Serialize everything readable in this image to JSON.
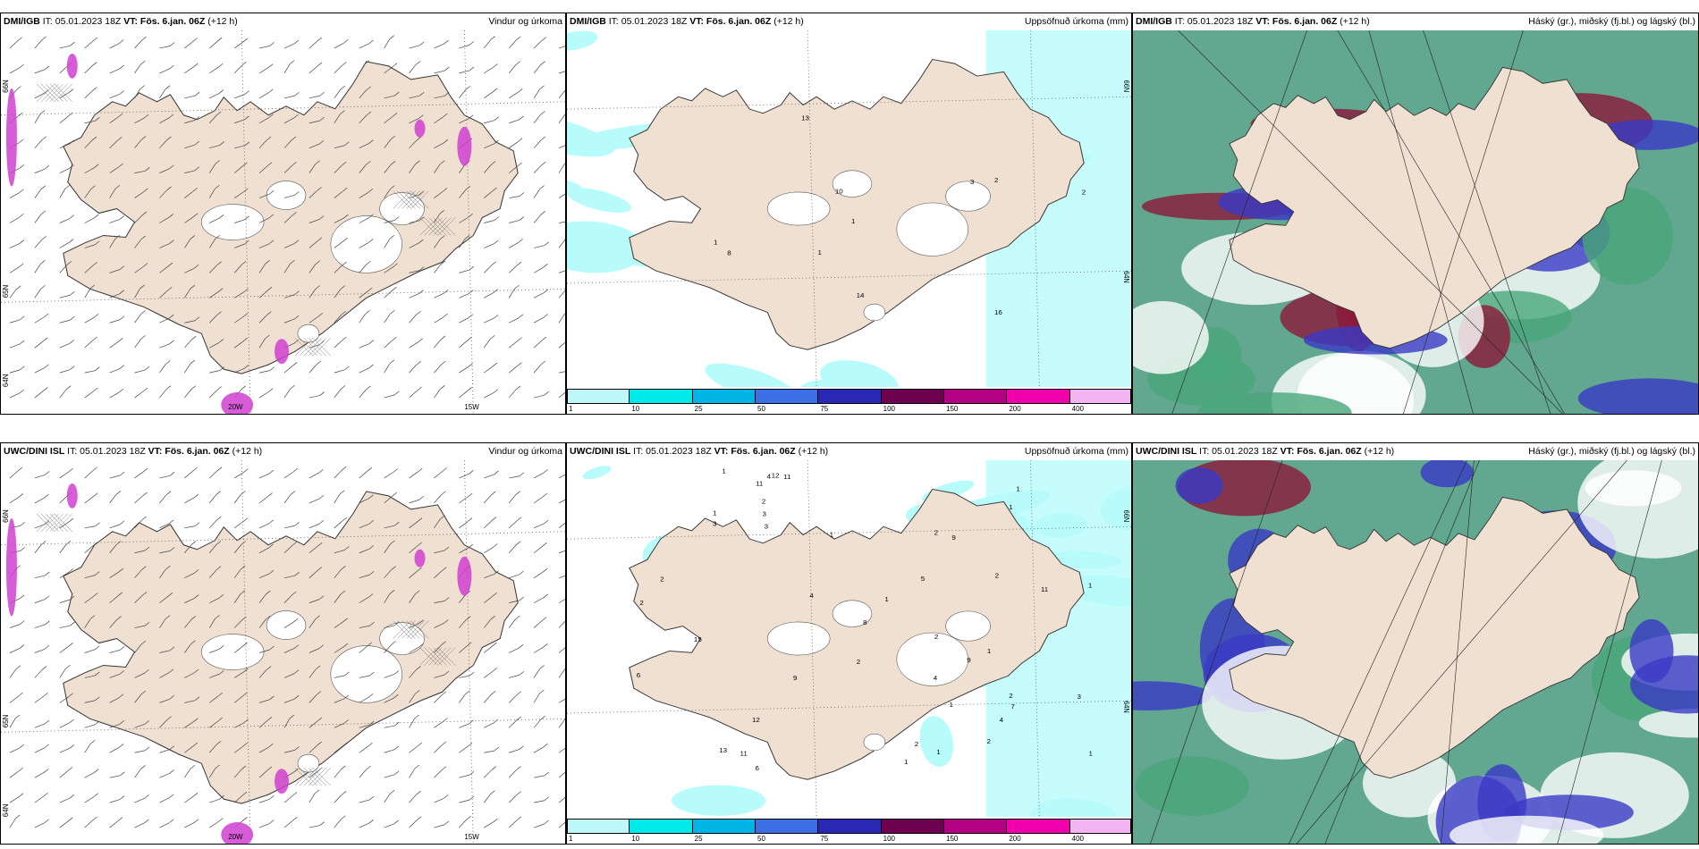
{
  "panels": [
    {
      "model": "DMI/IGB",
      "it": "IT: 05.01.2023 18Z",
      "vt_label": "VT:",
      "vt": "Fös. 6.jan. 06Z",
      "lead": "(+12 h)",
      "title": "Vindur og úrkoma",
      "kind": "wind",
      "lon_labels": [
        "20W",
        "15W"
      ],
      "lat_labels": [
        "66N",
        "65N",
        "64N"
      ]
    },
    {
      "model": "DMI/IGB",
      "it": "IT: 05.01.2023 18Z",
      "vt_label": "VT:",
      "vt": "Fös. 6.jan. 06Z",
      "lead": "(+12 h)",
      "title": "Uppsöfnuð úrkoma (mm)",
      "kind": "precip",
      "lat_labels": [
        "66N",
        "64N"
      ],
      "numbers": [
        "3",
        "16",
        "2",
        "1",
        "14",
        "13",
        "10",
        "1",
        "1",
        "2",
        "8"
      ]
    },
    {
      "model": "DMI/IGB",
      "it": "IT: 05.01.2023 18Z",
      "vt_label": "VT:",
      "vt": "Fös. 6.jan. 06Z",
      "lead": "(+12 h)",
      "title": "Háský (gr.), miðský (fj.bl.) og lágský (bl.)",
      "kind": "cloud"
    },
    {
      "model": "UWC/DINI ISL",
      "it": "IT: 05.01.2023 18Z",
      "vt_label": "VT:",
      "vt": "Fös. 6.jan. 06Z",
      "lead": "(+12 h)",
      "title": "Vindur og úrkoma",
      "kind": "wind",
      "lon_labels": [
        "20W",
        "15W"
      ],
      "lat_labels": [
        "66N",
        "65N",
        "64N"
      ]
    },
    {
      "model": "UWC/DINI ISL",
      "it": "IT: 05.01.2023 18Z",
      "vt_label": "VT:",
      "vt": "Fös. 6.jan. 06Z",
      "lead": "(+12 h)",
      "title": "Uppsöfnuð úrkoma (mm)",
      "kind": "precip",
      "lat_labels": [
        "66N",
        "64N"
      ],
      "numbers": [
        "1",
        "2",
        "2",
        "1",
        "3",
        "4",
        "7",
        "6",
        "5",
        "15",
        "9",
        "6",
        "2",
        "1",
        "1",
        "2",
        "1",
        "2",
        "4",
        "11",
        "13",
        "12",
        "11",
        "9",
        "9",
        "11",
        "12",
        "11",
        "4",
        "2",
        "8",
        "2",
        "2",
        "1",
        "1",
        "1",
        "1",
        "2",
        "3",
        "2",
        "1",
        "4",
        "3",
        "3",
        "1",
        "1"
      ]
    },
    {
      "model": "UWC/DINI ISL",
      "it": "IT: 05.01.2023 18Z",
      "vt_label": "VT:",
      "vt": "Fös. 6.jan. 06Z",
      "lead": "(+12 h)",
      "title": "Háský (gr.), miðský (fj.bl.) og lágský (bl.)",
      "kind": "cloud"
    }
  ],
  "colorbar": {
    "ticks": [
      "1",
      "10",
      "25",
      "50",
      "75",
      "100",
      "150",
      "200",
      "400"
    ],
    "colors": [
      "#bff8f8",
      "#00eaea",
      "#00b4e6",
      "#3c6ee6",
      "#2828b4",
      "#6e0050",
      "#b40082",
      "#f000aa",
      "#f4b4f4"
    ]
  },
  "colors": {
    "land": "#efe0d2",
    "water": "#ffffff",
    "precip_light": "#b8fbfb",
    "high_cloud": "#2e8a6a",
    "mid_cloud": "#3a3ac6",
    "low_cloud": "#8c1a3a"
  }
}
